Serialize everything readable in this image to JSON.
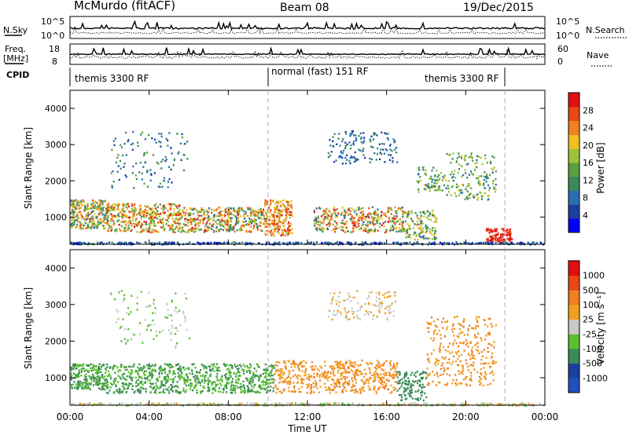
{
  "header": {
    "station": "McMurdo (fitACF)",
    "beam": "Beam 08",
    "date": "19/Dec/2015"
  },
  "top_panels": {
    "noise_left_label": "N.Sky",
    "noise_right_label": "N.Search",
    "noise_ticks": [
      "10^5",
      "10^0"
    ],
    "freq_label_1": "Freq.",
    "freq_label_2": "[MHz]",
    "freq_ticks": [
      "18",
      "8"
    ],
    "nave_label": "Nave",
    "nave_ticks": [
      "60",
      "0"
    ],
    "cpid_label": "CPID",
    "cpid_segments": [
      "themis 3300 RF",
      "normal (fast) 151 RF",
      "themis 3300 RF"
    ]
  },
  "colors": {
    "power_scale": [
      "#0000ff",
      "#1d3fa0",
      "#2a6eb0",
      "#3a8a5a",
      "#5aa040",
      "#9ec23a",
      "#f0c020",
      "#f08020",
      "#e84818",
      "#e01010"
    ],
    "velocity_scale": [
      "#e01010",
      "#e84818",
      "#f08020",
      "#f0a020",
      "#c8c8c8",
      "#5ac030",
      "#3a8a5a",
      "#1d3fa0",
      "#2050c0"
    ]
  },
  "chart_data": [
    {
      "type": "heatmap",
      "title": "",
      "ylabel": "Slant Range [km]",
      "xlabel": "",
      "ylim": [
        250,
        4500
      ],
      "yticks": [
        1000,
        2000,
        3000,
        4000
      ],
      "xlim_hours": [
        0,
        24
      ],
      "colorbar_label": "Power [dB]",
      "colorbar_ticks": [
        "4",
        "8",
        "12",
        "16",
        "20",
        "24",
        "28"
      ],
      "vrange": [
        0,
        32
      ]
    },
    {
      "type": "heatmap",
      "title": "",
      "ylabel": "Slant Range [km]",
      "xlabel": "Time UT",
      "ylim": [
        250,
        4500
      ],
      "yticks": [
        1000,
        2000,
        3000,
        4000
      ],
      "xlim_hours": [
        0,
        24
      ],
      "xtick_labels": [
        "00:00",
        "04:00",
        "08:00",
        "12:00",
        "16:00",
        "20:00",
        "00:00"
      ],
      "colorbar_label": "Velocity [m s⁻¹]",
      "colorbar_ticks": [
        "1000",
        "500",
        "100",
        "25",
        "-25",
        "-100",
        "-500",
        "-1000"
      ]
    }
  ]
}
